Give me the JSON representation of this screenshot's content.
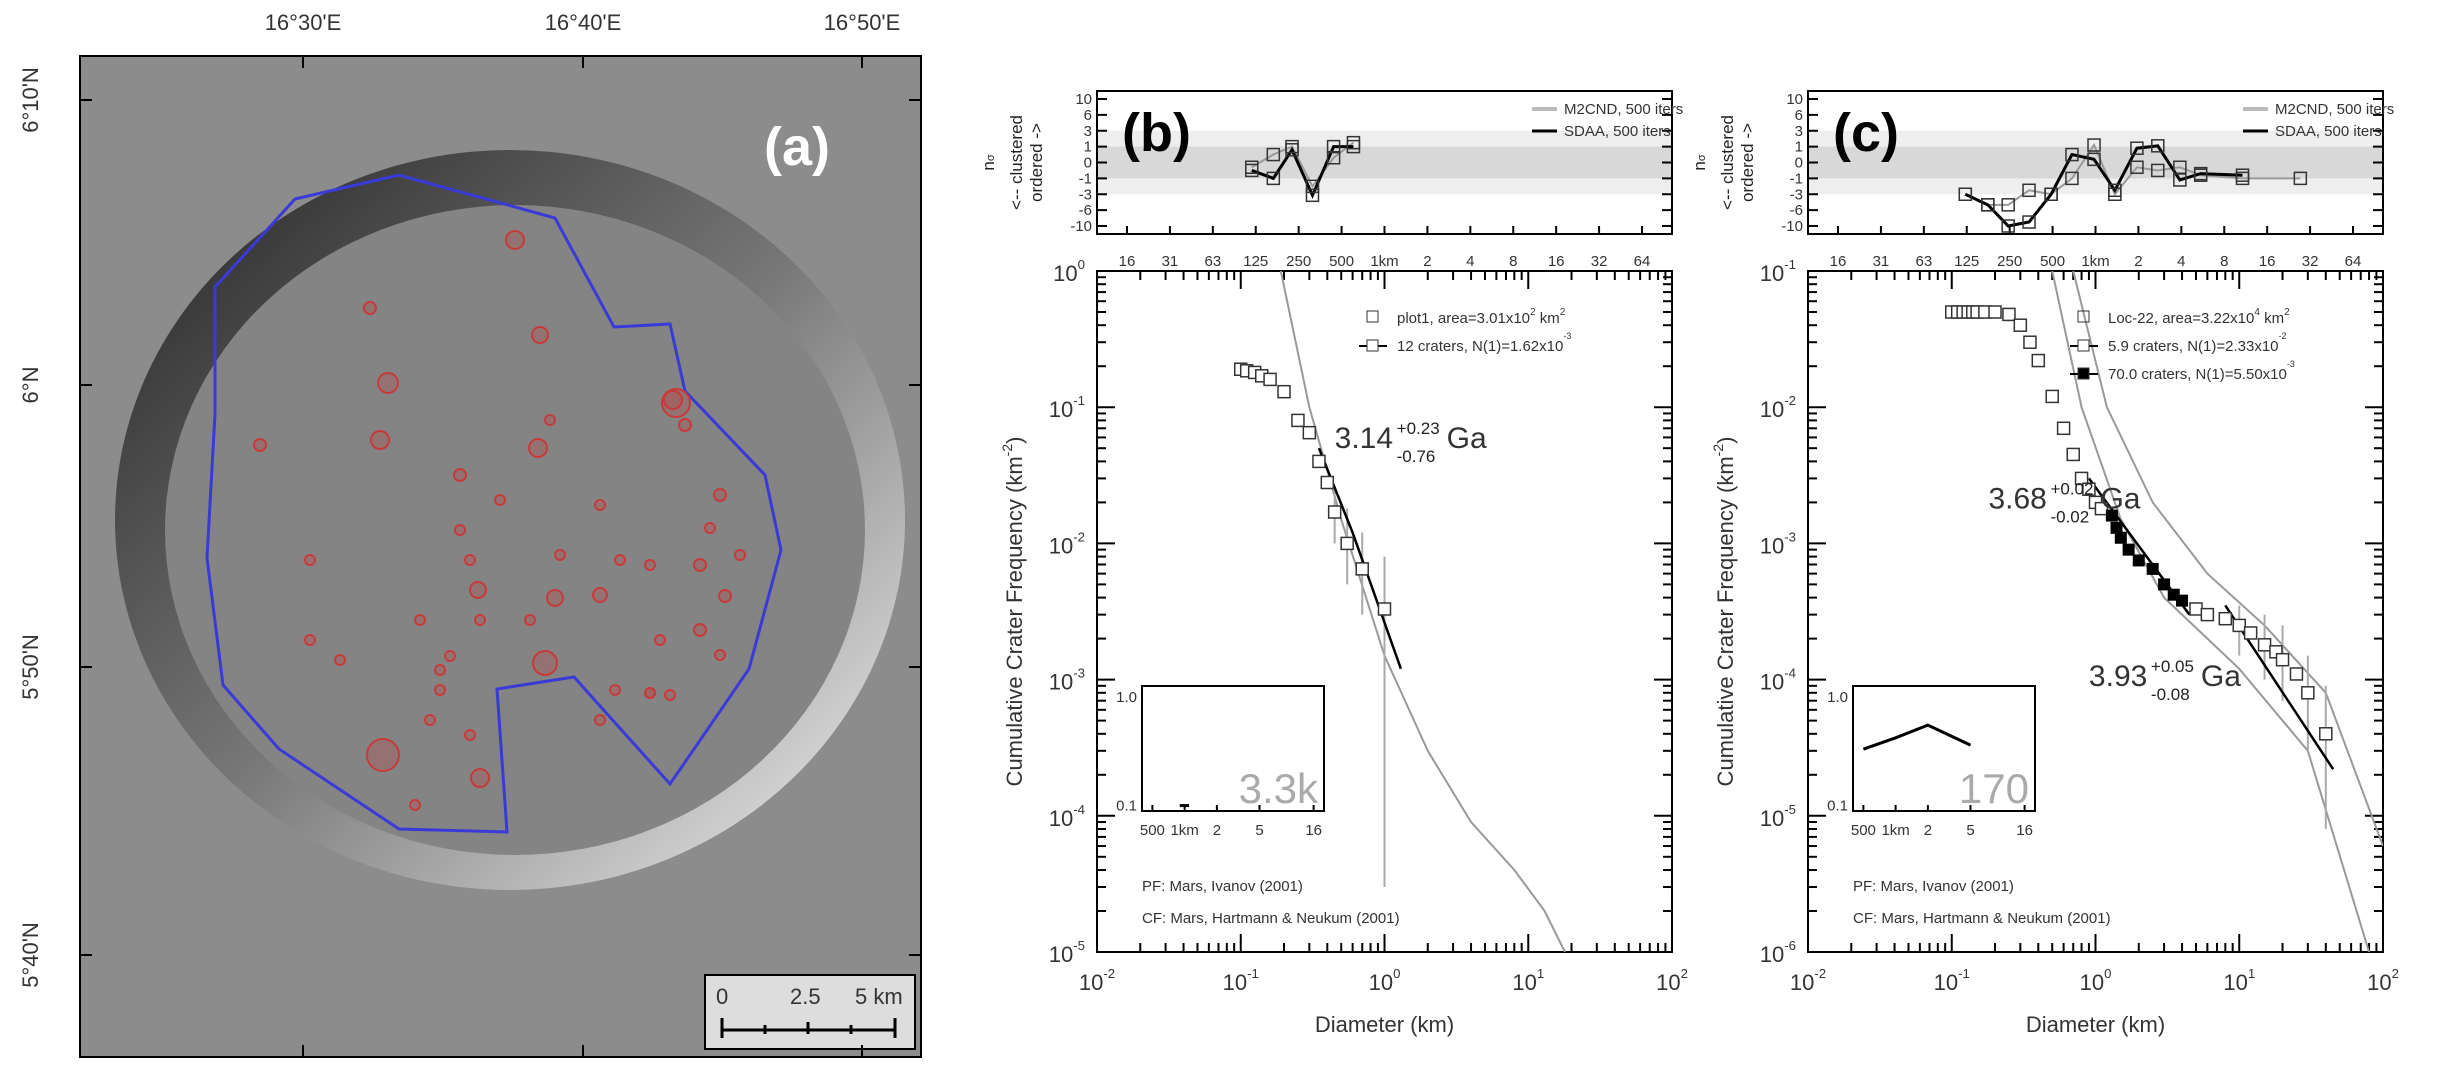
{
  "panel_a": {
    "label": "(a)",
    "lon_labels": [
      "16°30'E",
      "16°40'E",
      "16°50'E"
    ],
    "lat_labels": [
      "6°10'N",
      "6°N",
      "5°50'N",
      "5°40'N"
    ],
    "scale_bar": {
      "ticks": [
        "0",
        "2.5",
        "5 km"
      ]
    },
    "colors": {
      "boundary": "#3a3ad8",
      "crater": "#c83a3a"
    }
  },
  "chart_data": [
    {
      "type": "scatter",
      "panel": "(b)",
      "xlabel": "Diameter (km)",
      "ylabel": "Cumulative Crater Frequency (km-2)",
      "ylabel_main": "Cumulative Crater Frequency (km",
      "ylabel_exp": "-2",
      "ylabel_end": ")",
      "xlim": [
        0.01,
        100
      ],
      "ylim": [
        1e-05,
        1
      ],
      "x_ticks": [
        [
          "10",
          "-2"
        ],
        [
          "10",
          "-1"
        ],
        [
          "10",
          "0"
        ],
        [
          "10",
          "1"
        ],
        [
          "10",
          "2"
        ]
      ],
      "y_ticks": [
        [
          "10",
          "0"
        ],
        [
          "10",
          "-1"
        ],
        [
          "10",
          "-2"
        ],
        [
          "10",
          "-3"
        ],
        [
          "10",
          "-4"
        ],
        [
          "10",
          "-5"
        ]
      ],
      "legend": [
        "plot1, area=3.01x10",
        "2",
        " km",
        "2",
        "12 craters, N(1)=1.62x10",
        "-3"
      ],
      "points": [
        [
          0.1,
          0.19
        ],
        [
          0.11,
          0.185
        ],
        [
          0.125,
          0.18
        ],
        [
          0.14,
          0.17
        ],
        [
          0.16,
          0.16
        ],
        [
          0.2,
          0.13
        ],
        [
          0.25,
          0.08
        ],
        [
          0.3,
          0.065
        ],
        [
          0.35,
          0.04
        ],
        [
          0.4,
          0.028
        ],
        [
          0.45,
          0.017
        ],
        [
          0.55,
          0.01
        ],
        [
          0.7,
          0.0065
        ],
        [
          1.0,
          0.0033
        ]
      ],
      "fit": [
        [
          0.35,
          0.05
        ],
        [
          0.6,
          0.012
        ],
        [
          1.3,
          0.0012
        ]
      ],
      "errors": [
        [
          0.45,
          0.01,
          0.025
        ],
        [
          0.55,
          0.005,
          0.018
        ],
        [
          0.7,
          0.003,
          0.012
        ],
        [
          1.0,
          3e-05,
          0.008
        ]
      ],
      "isochrons": [
        [
          [
            0.19,
            1
          ],
          [
            0.3,
            0.1
          ],
          [
            0.5,
            0.015
          ],
          [
            1,
            0.0015
          ],
          [
            2,
            0.0003
          ],
          [
            4,
            9e-05
          ],
          [
            8,
            4e-05
          ],
          [
            13,
            2e-05
          ],
          [
            18,
            1e-05
          ]
        ]
      ],
      "ages": [
        {
          "value": "3.14",
          "plus": "+0.23",
          "minus": "-0.76",
          "unit": "Ga"
        }
      ],
      "references": [
        "PF: Mars, Ivanov (2001)",
        "CF: Mars, Hartmann & Neukum (2001)"
      ],
      "inset": {
        "y_ticks": [
          "1.0",
          "0.1"
        ],
        "x_ticks": [
          "500",
          "1km",
          "2",
          "5",
          "16"
        ],
        "label": "3.3k",
        "line": [
          [
            0.9,
            0.1
          ],
          [
            1.1,
            0.1
          ]
        ]
      },
      "strip": {
        "ylabel": [
          "n",
          "σ",
          "<-- clustered",
          "ordered ->"
        ],
        "y_ticks": [
          "10",
          "6",
          "3",
          "1",
          "0",
          "-1",
          "-3",
          "-6",
          "-10"
        ],
        "x_ticks": [
          "16",
          "31",
          "63",
          "125",
          "250",
          "500",
          "1km",
          "2",
          "4",
          "8",
          "16",
          "32",
          "64"
        ],
        "legend": [
          "M2CND, 500 iters",
          "SDAA, 500 iters"
        ],
        "sdaa": [
          [
            120,
            -0.5
          ],
          [
            170,
            -1
          ],
          [
            230,
            0.8
          ],
          [
            320,
            -3.2
          ],
          [
            450,
            1
          ],
          [
            620,
            1
          ]
        ],
        "m2cnd": [
          [
            120,
            -0.3
          ],
          [
            170,
            0.5
          ],
          [
            230,
            1
          ],
          [
            320,
            -2
          ],
          [
            450,
            0.3
          ],
          [
            620,
            1.5
          ]
        ]
      }
    },
    {
      "type": "scatter",
      "panel": "(c)",
      "xlabel": "Diameter (km)",
      "ylabel": "Cumulative Crater Frequency (km-2)",
      "ylabel_main": "Cumulative Crater Frequency (km",
      "ylabel_exp": "-2",
      "ylabel_end": ")",
      "xlim": [
        0.01,
        100
      ],
      "ylim": [
        1e-06,
        0.1
      ],
      "x_ticks": [
        [
          "10",
          "-2"
        ],
        [
          "10",
          "-1"
        ],
        [
          "10",
          "0"
        ],
        [
          "10",
          "1"
        ],
        [
          "10",
          "2"
        ]
      ],
      "y_ticks": [
        [
          "10",
          "-1"
        ],
        [
          "10",
          "-2"
        ],
        [
          "10",
          "-3"
        ],
        [
          "10",
          "-4"
        ],
        [
          "10",
          "-5"
        ],
        [
          "10",
          "-6"
        ]
      ],
      "legend": [
        "Loc-22, area=3.22x10",
        "4",
        " km",
        "2",
        "5.9 craters, N(1)=2.33x10",
        "-2",
        "70.0 craters, N(1)=5.50x10",
        "-3"
      ],
      "points": [
        [
          0.1,
          0.05
        ],
        [
          0.11,
          0.05
        ],
        [
          0.12,
          0.05
        ],
        [
          0.13,
          0.05
        ],
        [
          0.14,
          0.05
        ],
        [
          0.15,
          0.05
        ],
        [
          0.17,
          0.05
        ],
        [
          0.2,
          0.05
        ],
        [
          0.25,
          0.048
        ],
        [
          0.3,
          0.04
        ],
        [
          0.35,
          0.03
        ],
        [
          0.4,
          0.022
        ],
        [
          0.5,
          0.012
        ],
        [
          0.6,
          0.007
        ],
        [
          0.7,
          0.0045
        ],
        [
          0.8,
          0.003
        ],
        [
          0.9,
          0.0025
        ],
        [
          1,
          0.002
        ],
        [
          1.1,
          0.0018
        ],
        [
          5,
          0.00033
        ],
        [
          6,
          0.0003
        ],
        [
          8,
          0.00028
        ],
        [
          10,
          0.00025
        ],
        [
          12,
          0.00022
        ],
        [
          15,
          0.00018
        ],
        [
          18,
          0.00016
        ],
        [
          20,
          0.00014
        ],
        [
          25,
          0.00011
        ],
        [
          30,
          8e-05
        ],
        [
          40,
          4e-05
        ]
      ],
      "filled": [
        [
          1.3,
          0.0016
        ],
        [
          1.4,
          0.0013
        ],
        [
          1.5,
          0.0011
        ],
        [
          1.7,
          0.0009
        ],
        [
          2,
          0.00075
        ],
        [
          2.5,
          0.00065
        ],
        [
          3,
          0.0005
        ],
        [
          3.5,
          0.00042
        ],
        [
          4,
          0.00038
        ]
      ],
      "fit": [
        [
          0.9,
          0.003
        ],
        [
          4.5,
          0.0003
        ]
      ],
      "fit2": [
        [
          8,
          0.00035
        ],
        [
          45,
          2.2e-05
        ]
      ],
      "errors": [
        [
          10,
          0.00015,
          0.00035
        ],
        [
          15,
          0.0001,
          0.0003
        ],
        [
          20,
          7e-05,
          0.00025
        ],
        [
          30,
          3e-05,
          0.00015
        ],
        [
          40,
          8e-06,
          9e-05
        ]
      ],
      "isochrons": [
        [
          [
            0.5,
            0.1
          ],
          [
            0.8,
            0.01
          ],
          [
            1.5,
            0.0015
          ],
          [
            3,
            0.0004
          ],
          [
            10,
            0.00012
          ],
          [
            30,
            3e-05
          ],
          [
            80,
            1e-06
          ]
        ],
        [
          [
            0.7,
            0.1
          ],
          [
            1.2,
            0.01
          ],
          [
            2.5,
            0.002
          ],
          [
            6,
            0.0006
          ],
          [
            15,
            0.00025
          ],
          [
            40,
            8e-05
          ],
          [
            100,
            6e-06
          ]
        ]
      ],
      "ages": [
        {
          "value": "3.68",
          "plus": "+0.02",
          "minus": "-0.02",
          "unit": "Ga"
        },
        {
          "value": "3.93",
          "plus": "+0.05",
          "minus": "-0.08",
          "unit": "Ga"
        }
      ],
      "references": [
        "PF: Mars, Ivanov (2001)",
        "CF: Mars, Hartmann & Neukum (2001)"
      ],
      "inset": {
        "y_ticks": [
          "1.0",
          "0.1"
        ],
        "x_ticks": [
          "500",
          "1km",
          "2",
          "5",
          "16"
        ],
        "label": "170",
        "line": [
          [
            0.5,
            0.33
          ],
          [
            1,
            0.42
          ],
          [
            2,
            0.55
          ],
          [
            5,
            0.36
          ]
        ]
      },
      "strip": {
        "ylabel": [
          "n",
          "σ",
          "<-- clustered",
          "ordered ->"
        ],
        "y_ticks": [
          "10",
          "6",
          "3",
          "1",
          "0",
          "-1",
          "-3",
          "-6",
          "-10"
        ],
        "x_ticks": [
          "16",
          "31",
          "63",
          "125",
          "250",
          "500",
          "1km",
          "2",
          "4",
          "8",
          "16",
          "32",
          "64"
        ],
        "legend": [
          "M2CND, 500 iters",
          "SDAA, 500 iters"
        ],
        "sdaa": [
          [
            125,
            -3
          ],
          [
            180,
            -5
          ],
          [
            250,
            -11
          ],
          [
            350,
            -9
          ],
          [
            500,
            -3
          ],
          [
            700,
            0.5
          ],
          [
            1000,
            0.2
          ],
          [
            1400,
            -2.5
          ],
          [
            2000,
            0.9
          ],
          [
            2800,
            1.1
          ],
          [
            4000,
            -1.2
          ],
          [
            5600,
            -0.7
          ],
          [
            11000,
            -0.8
          ]
        ],
        "m2cnd": [
          [
            125,
            -3
          ],
          [
            180,
            -5
          ],
          [
            250,
            -5
          ],
          [
            350,
            -2.5
          ],
          [
            500,
            -3
          ],
          [
            700,
            -1
          ],
          [
            1000,
            1.2
          ],
          [
            1400,
            -3
          ],
          [
            2000,
            -0.3
          ],
          [
            2800,
            -0.5
          ],
          [
            4000,
            -0.3
          ],
          [
            5600,
            -0.8
          ],
          [
            11000,
            -1
          ],
          [
            28000,
            -1
          ]
        ]
      }
    }
  ]
}
